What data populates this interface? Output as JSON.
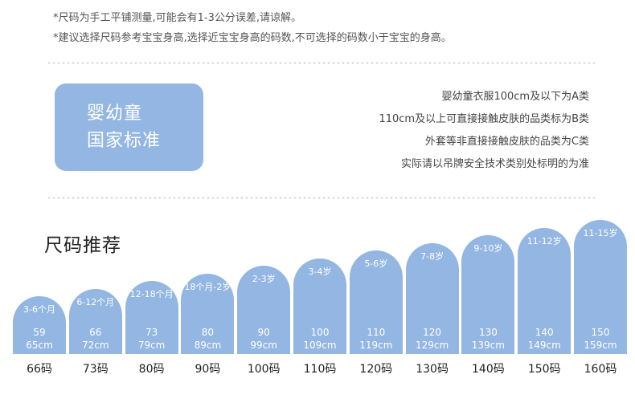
{
  "notes": [
    "*尺码为手工平铺测量,可能会有1-3公分误差,请谅解。",
    "*建议选择尺码参考宝宝身高,选择近宝宝身高的码数,不可选择的码数小于宝宝的身高。"
  ],
  "standard": {
    "title_line1": "婴幼童",
    "title_line2": "国家标准",
    "lines": [
      "婴幼童衣服100cm及以下为A类",
      "110cm及以上可直接接触皮肤的品类标为B类",
      "外套等非直接接触皮肤的品类为C类",
      "实际请以吊牌安全技术类别处标明的为准"
    ]
  },
  "section_title": "尺码推荐",
  "colors": {
    "bar": "#93b6e2",
    "text_dark": "#222222"
  },
  "sizes": [
    {
      "age": "3-6个月",
      "weight": "59",
      "height": "65cm",
      "label": "66码",
      "level": 1
    },
    {
      "age": "6-12个月",
      "weight": "66",
      "height": "72cm",
      "label": "73码",
      "level": 2
    },
    {
      "age": "12-18个月",
      "weight": "73",
      "height": "79cm",
      "label": "80码",
      "level": 3
    },
    {
      "age": "18个月-2岁",
      "weight": "80",
      "height": "89cm",
      "label": "90码",
      "level": 4
    },
    {
      "age": "2-3岁",
      "weight": "90",
      "height": "99cm",
      "label": "100码",
      "level": 5
    },
    {
      "age": "3-4岁",
      "weight": "100",
      "height": "109cm",
      "label": "110码",
      "level": 6
    },
    {
      "age": "5-6岁",
      "weight": "110",
      "height": "119cm",
      "label": "120码",
      "level": 7
    },
    {
      "age": "7-8岁",
      "weight": "120",
      "height": "129cm",
      "label": "130码",
      "level": 8
    },
    {
      "age": "9-10岁",
      "weight": "130",
      "height": "139cm",
      "label": "140码",
      "level": 9
    },
    {
      "age": "11-12岁",
      "weight": "140",
      "height": "149cm",
      "label": "150码",
      "level": 10
    },
    {
      "age": "11-15岁",
      "weight": "150",
      "height": "159cm",
      "label": "160码",
      "level": 11
    }
  ]
}
